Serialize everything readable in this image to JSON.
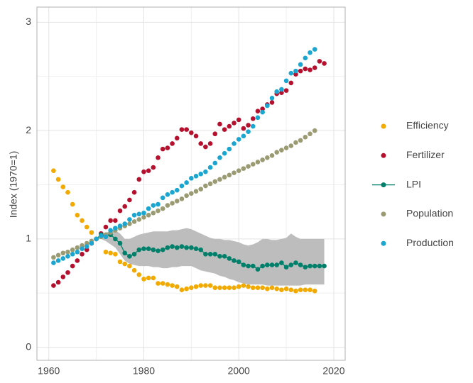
{
  "chart_data": {
    "type": "scatter",
    "ylabel": "Index (1970=1)",
    "xlim": [
      1957.5,
      2022.4
    ],
    "xticks": [
      1960,
      1980,
      2000,
      2020
    ],
    "ylim": [
      -0.12,
      3.14
    ],
    "yticks": [
      0,
      1,
      2,
      3
    ],
    "grid": true,
    "legend": "right",
    "x": [
      1961,
      1962,
      1963,
      1964,
      1965,
      1966,
      1967,
      1968,
      1969,
      1970,
      1971,
      1972,
      1973,
      1974,
      1975,
      1976,
      1977,
      1978,
      1979,
      1980,
      1981,
      1982,
      1983,
      1984,
      1985,
      1986,
      1987,
      1988,
      1989,
      1990,
      1991,
      1992,
      1993,
      1994,
      1995,
      1996,
      1997,
      1998,
      1999,
      2000,
      2001,
      2002,
      2003,
      2004,
      2005,
      2006,
      2007,
      2008,
      2009,
      2010,
      2011,
      2012,
      2013,
      2014,
      2015,
      2016,
      2017,
      2018
    ],
    "series": [
      {
        "name": "Efficiency",
        "color": "#f2a900",
        "values": [
          1.63,
          1.55,
          1.48,
          1.43,
          1.32,
          1.22,
          1.17,
          1.11,
          1.06,
          1.0,
          1.02,
          0.88,
          0.87,
          0.86,
          0.79,
          0.77,
          0.75,
          0.71,
          0.67,
          0.63,
          0.64,
          0.64,
          0.59,
          0.59,
          0.58,
          0.57,
          0.56,
          0.53,
          0.54,
          0.55,
          0.56,
          0.57,
          0.57,
          0.57,
          0.55,
          0.55,
          0.55,
          0.55,
          0.55,
          0.56,
          0.57,
          0.56,
          0.55,
          0.55,
          0.55,
          0.54,
          0.55,
          0.54,
          0.53,
          0.54,
          0.53,
          0.52,
          0.53,
          0.53,
          0.53,
          0.52,
          null,
          null
        ]
      },
      {
        "name": "Fertilizer",
        "color": "#b5112e",
        "values": [
          0.57,
          0.6,
          0.65,
          0.69,
          0.75,
          0.8,
          0.86,
          0.9,
          0.96,
          1.0,
          1.05,
          1.11,
          1.17,
          1.17,
          1.26,
          1.3,
          1.36,
          1.43,
          1.55,
          1.62,
          1.63,
          1.66,
          1.75,
          1.83,
          1.84,
          1.88,
          1.93,
          2.01,
          2.01,
          1.98,
          1.95,
          1.88,
          1.85,
          1.88,
          1.97,
          2.06,
          2.01,
          2.04,
          2.07,
          2.1,
          2.02,
          2.05,
          2.11,
          2.18,
          2.2,
          2.24,
          2.26,
          2.34,
          2.35,
          2.37,
          2.44,
          2.52,
          2.55,
          2.57,
          2.56,
          2.58,
          2.64,
          2.62
        ]
      },
      {
        "name": "LPI",
        "color": "#00806a",
        "line": true,
        "values": [
          null,
          null,
          null,
          null,
          null,
          null,
          null,
          null,
          null,
          1.0,
          1.04,
          1.03,
          1.04,
          1.0,
          0.96,
          0.87,
          0.84,
          0.86,
          0.9,
          0.91,
          0.91,
          0.9,
          0.89,
          0.9,
          0.92,
          0.93,
          0.92,
          0.93,
          0.92,
          0.92,
          0.91,
          0.9,
          0.86,
          0.86,
          0.86,
          0.84,
          0.84,
          0.82,
          0.8,
          0.79,
          0.76,
          0.75,
          0.75,
          0.72,
          0.75,
          0.76,
          0.76,
          0.76,
          0.78,
          0.74,
          0.76,
          0.78,
          0.76,
          0.74,
          0.75,
          0.75,
          0.75,
          0.75
        ],
        "ci_lower": [
          null,
          null,
          null,
          null,
          null,
          null,
          null,
          null,
          null,
          1.0,
          1.0,
          0.98,
          0.95,
          0.92,
          0.86,
          0.8,
          0.77,
          0.76,
          0.75,
          0.75,
          0.75,
          0.74,
          0.74,
          0.73,
          0.73,
          0.74,
          0.74,
          0.75,
          0.75,
          0.75,
          0.73,
          0.71,
          0.7,
          0.69,
          0.68,
          0.66,
          0.65,
          0.63,
          0.62,
          0.6,
          0.59,
          0.58,
          0.58,
          0.58,
          0.58,
          0.57,
          0.57,
          0.57,
          0.57,
          0.57,
          0.57,
          0.57,
          0.57,
          0.58,
          0.58,
          0.58,
          0.58,
          0.58
        ],
        "ci_upper": [
          null,
          null,
          null,
          null,
          null,
          null,
          null,
          null,
          null,
          1.0,
          1.04,
          1.06,
          1.07,
          1.08,
          1.05,
          1.0,
          1.0,
          1.02,
          1.04,
          1.05,
          1.06,
          1.07,
          1.07,
          1.07,
          1.07,
          1.08,
          1.08,
          1.09,
          1.1,
          1.09,
          1.07,
          1.05,
          1.03,
          1.01,
          1.0,
          1.0,
          0.99,
          0.99,
          0.98,
          0.97,
          0.95,
          0.94,
          0.95,
          0.97,
          1.0,
          1.0,
          0.99,
          0.99,
          1.0,
          1.01,
          1.05,
          1.02,
          1.0,
          1.0,
          1.0,
          1.0,
          1.0,
          1.0
        ]
      },
      {
        "name": "Population",
        "color": "#9b9b73",
        "values": [
          0.83,
          0.85,
          0.87,
          0.88,
          0.9,
          0.92,
          0.94,
          0.96,
          0.98,
          1.0,
          1.02,
          1.04,
          1.06,
          1.08,
          1.1,
          1.12,
          1.14,
          1.16,
          1.18,
          1.2,
          1.22,
          1.24,
          1.26,
          1.28,
          1.31,
          1.33,
          1.35,
          1.37,
          1.4,
          1.42,
          1.44,
          1.46,
          1.49,
          1.51,
          1.53,
          1.55,
          1.57,
          1.59,
          1.61,
          1.63,
          1.65,
          1.67,
          1.69,
          1.71,
          1.73,
          1.75,
          1.77,
          1.8,
          1.82,
          1.84,
          1.86,
          1.89,
          1.91,
          1.94,
          1.97,
          2.0,
          null,
          null
        ]
      },
      {
        "name": "Production",
        "color": "#1aa6d0",
        "values": [
          0.78,
          0.8,
          0.82,
          0.84,
          0.86,
          0.88,
          0.91,
          0.93,
          0.96,
          1.0,
          1.03,
          1.02,
          1.08,
          1.1,
          1.12,
          1.14,
          1.18,
          1.22,
          1.23,
          1.24,
          1.28,
          1.31,
          1.32,
          1.38,
          1.41,
          1.43,
          1.45,
          1.49,
          1.52,
          1.56,
          1.58,
          1.6,
          1.62,
          1.66,
          1.7,
          1.75,
          1.79,
          1.83,
          1.88,
          1.92,
          1.95,
          1.99,
          2.04,
          2.12,
          2.17,
          2.23,
          2.3,
          2.36,
          2.38,
          2.46,
          2.53,
          2.55,
          2.61,
          2.67,
          2.72,
          2.75,
          null,
          null
        ]
      }
    ]
  }
}
